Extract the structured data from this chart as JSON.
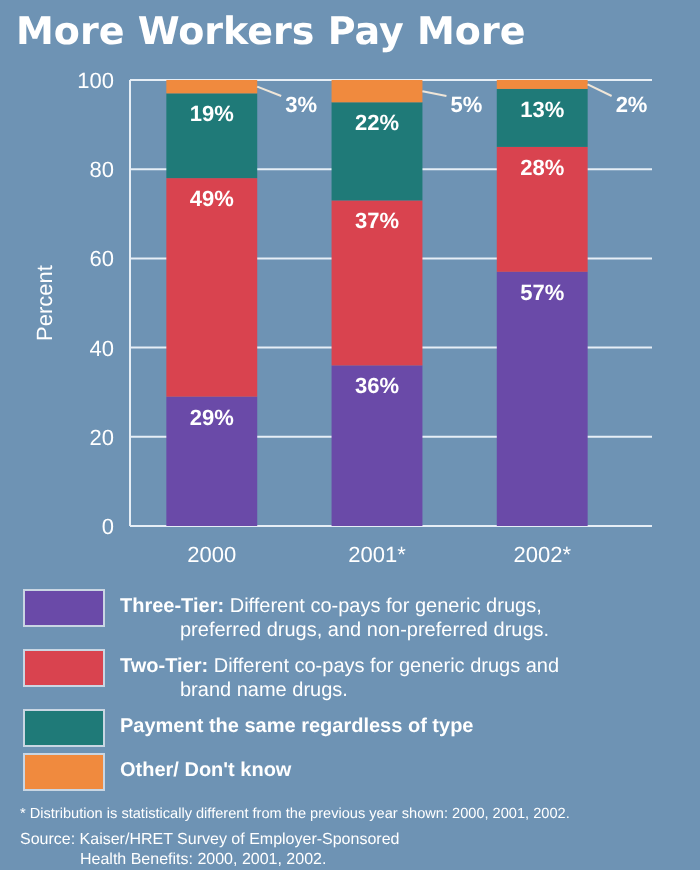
{
  "chart_data": {
    "type": "bar",
    "stacked": true,
    "title": "More Workers Pay More",
    "ylabel": "Percent",
    "categories": [
      "2000",
      "2001*",
      "2002*"
    ],
    "series": [
      {
        "name": "Three-Tier: Different co-pays for generic drugs, preferred drugs, and non-preferred drugs.",
        "color": "#6a4aa8",
        "values": [
          29,
          36,
          57
        ],
        "value_labels": [
          "29%",
          "36%",
          "57%"
        ]
      },
      {
        "name": "Two-Tier: Different co-pays for generic drugs and brand name drugs.",
        "color": "#d9434f",
        "values": [
          49,
          37,
          28
        ],
        "value_labels": [
          "49%",
          "37%",
          "28%"
        ]
      },
      {
        "name": "Payment the same regardless of type",
        "color": "#1f7a78",
        "values": [
          19,
          22,
          13
        ],
        "value_labels": [
          "19%",
          "22%",
          "13%"
        ]
      },
      {
        "name": "Other/ Don't know",
        "color": "#f08a3e",
        "values": [
          3,
          5,
          2
        ],
        "value_labels": [
          "3%",
          "5%",
          "2%"
        ]
      }
    ],
    "ylim": [
      0,
      100
    ],
    "yticks": [
      0,
      20,
      40,
      60,
      80,
      100
    ],
    "grid": "y",
    "legend": "bottom",
    "annotations": [
      "* Distribution is statistically different from the previous year shown: 2000, 2001, 2002.",
      "Source: Kaiser/HRET Survey of Employer-Sponsored Health Benefits: 2000, 2001, 2002."
    ]
  }
}
